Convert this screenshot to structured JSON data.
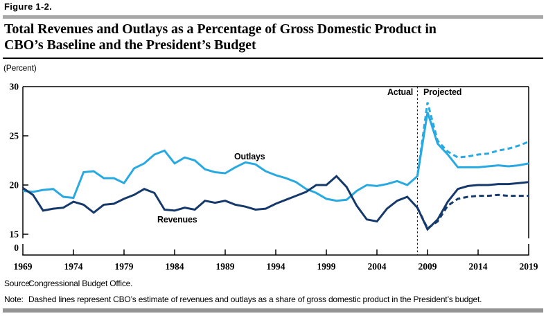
{
  "header": {
    "figure_label": "Figure 1-2.",
    "title_lines": [
      "Total Revenues and Outlays as a Percentage of Gross Domestic Product in",
      "CBO’s Baseline and the President’s Budget"
    ]
  },
  "footer": {
    "source_label": "Source:",
    "source_text": "Congressional Budget Office.",
    "note_label": "Note:",
    "note_text": "Dashed lines represent CBO’s estimate of revenues and outlays as a share of gross domestic product in the President’s budget."
  },
  "chart_data": {
    "type": "line",
    "title": "Total Revenues and Outlays as a Percentage of Gross Domestic Product in CBO’s Baseline and the President’s Budget",
    "unit_label": "(Percent)",
    "x_range": [
      1969,
      2019
    ],
    "xticks": [
      1969,
      1974,
      1979,
      1984,
      1989,
      1994,
      1999,
      2004,
      2009,
      2014,
      2019
    ],
    "yticks": [
      30,
      25,
      20,
      15
    ],
    "y_zero_label": "0",
    "ylim_displayed": [
      15,
      30
    ],
    "axis_break_between": [
      0,
      15
    ],
    "grid": false,
    "divider_year": 2008,
    "labels": {
      "actual": "Actual",
      "projected": "Projected",
      "outlays": "Outlays",
      "revenues": "Revenues"
    },
    "colors": {
      "outlays": "#29A9E1",
      "revenues": "#16396C"
    },
    "series": [
      {
        "name": "Outlays (CBO's baseline)",
        "style": "solid",
        "color": "#29A9E1",
        "start_year": 1969,
        "values": [
          19.4,
          19.3,
          19.5,
          19.6,
          18.8,
          18.7,
          21.3,
          21.4,
          20.7,
          20.7,
          20.2,
          21.7,
          22.2,
          23.1,
          23.5,
          22.2,
          22.8,
          22.5,
          21.6,
          21.3,
          21.2,
          21.8,
          22.3,
          22.1,
          21.4,
          21.0,
          20.7,
          20.3,
          19.6,
          19.2,
          18.6,
          18.4,
          18.5,
          19.4,
          20.0,
          19.9,
          20.1,
          20.4,
          20.0,
          20.9,
          27.4,
          24.2,
          23.1,
          21.8,
          21.8,
          21.8,
          21.9,
          22.0,
          21.9,
          22.0,
          22.2
        ]
      },
      {
        "name": "Revenues (CBO's baseline)",
        "style": "solid",
        "color": "#16396C",
        "start_year": 1969,
        "values": [
          19.7,
          19.0,
          17.4,
          17.6,
          17.7,
          18.3,
          18.0,
          17.2,
          18.0,
          18.1,
          18.6,
          19.0,
          19.6,
          19.2,
          17.5,
          17.4,
          17.7,
          17.5,
          18.4,
          18.2,
          18.4,
          18.0,
          17.8,
          17.5,
          17.6,
          18.1,
          18.5,
          18.9,
          19.3,
          20.0,
          20.0,
          20.9,
          19.8,
          17.9,
          16.5,
          16.3,
          17.6,
          18.4,
          18.8,
          17.7,
          15.5,
          16.5,
          18.3,
          19.6,
          19.9,
          20.0,
          20.0,
          20.1,
          20.1,
          20.2,
          20.3
        ]
      },
      {
        "name": "Outlays (President's budget)",
        "style": "dashed",
        "color": "#29A9E1",
        "start_year": 2008,
        "values": [
          20.9,
          28.4,
          24.5,
          23.4,
          22.8,
          22.9,
          23.1,
          23.2,
          23.5,
          23.7,
          24.0,
          24.4
        ]
      },
      {
        "name": "Revenues (President's budget)",
        "style": "dashed",
        "color": "#16396C",
        "start_year": 2008,
        "values": [
          17.7,
          15.6,
          16.3,
          17.9,
          18.6,
          18.8,
          18.9,
          18.9,
          19.0,
          18.9,
          18.9,
          18.9
        ]
      }
    ]
  }
}
